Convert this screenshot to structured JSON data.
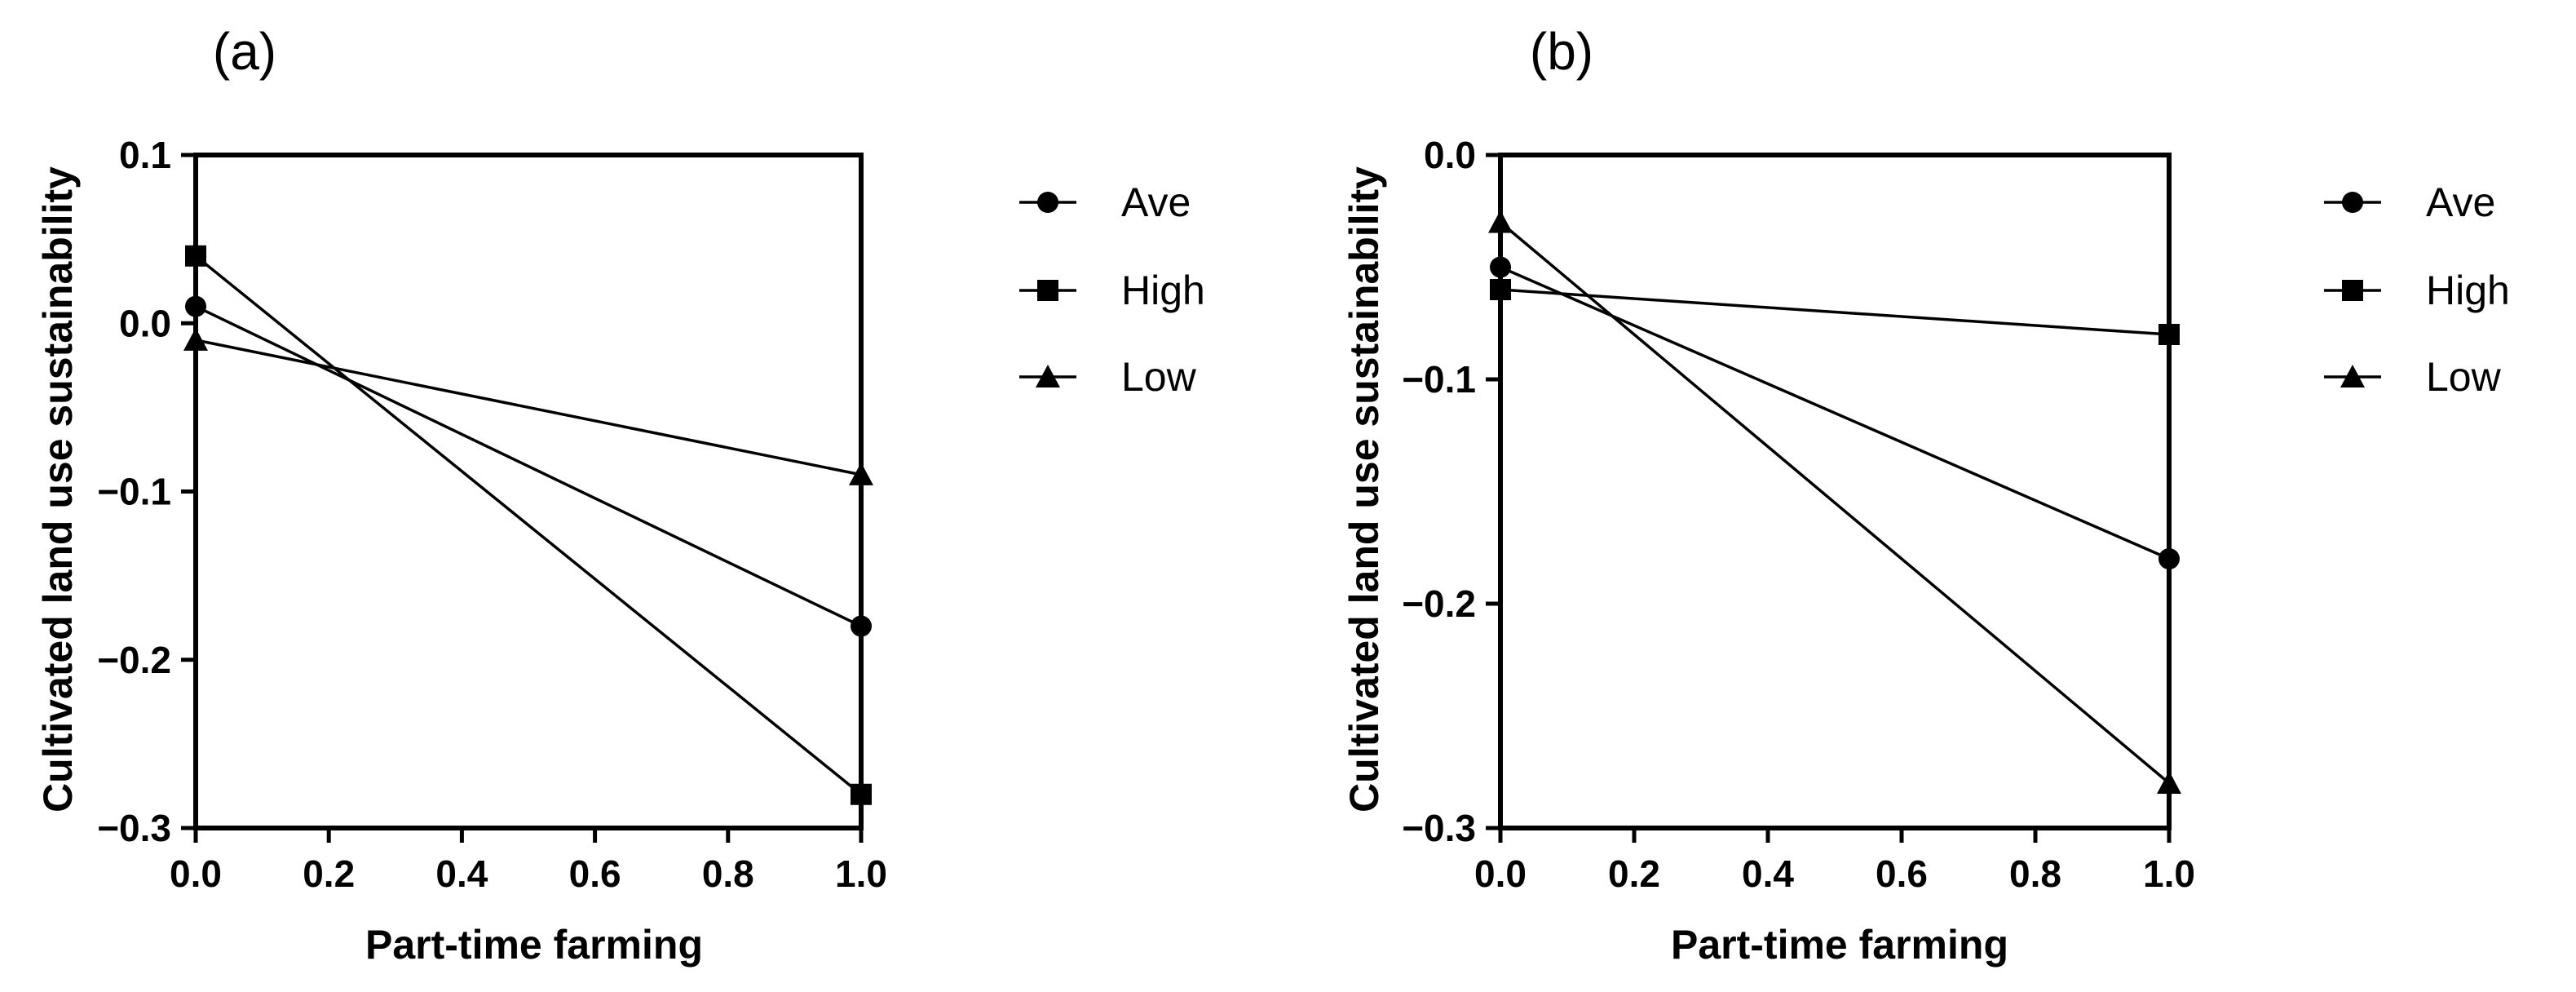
{
  "chart_data": [
    {
      "type": "line",
      "panel_label": "(a)",
      "xlabel": "Part-time farming",
      "ylabel": "Cultivated land use sustainability",
      "xlim": [
        0.0,
        1.0
      ],
      "ylim": [
        -0.3,
        0.1
      ],
      "xticks": [
        0.0,
        0.2,
        0.4,
        0.6,
        0.8,
        1.0
      ],
      "xtick_labels": [
        "0.0",
        "0.2",
        "0.4",
        "0.6",
        "0.8",
        "1.0"
      ],
      "yticks": [
        0.1,
        0.0,
        -0.1,
        -0.2,
        -0.3
      ],
      "ytick_labels": [
        "0.1",
        "0.0",
        "−0.1",
        "−0.2",
        "−0.3"
      ],
      "grid": false,
      "legend_position": "right",
      "series": [
        {
          "name": "Ave",
          "marker": "circle",
          "x": [
            0.0,
            1.0
          ],
          "values": [
            0.01,
            -0.18
          ]
        },
        {
          "name": "High",
          "marker": "square",
          "x": [
            0.0,
            1.0
          ],
          "values": [
            0.04,
            -0.28
          ]
        },
        {
          "name": "Low",
          "marker": "triangle",
          "x": [
            0.0,
            1.0
          ],
          "values": [
            -0.01,
            -0.09
          ]
        }
      ]
    },
    {
      "type": "line",
      "panel_label": "(b)",
      "xlabel": "Part-time farming",
      "ylabel": "Cultivated land use sustainability",
      "xlim": [
        0.0,
        1.0
      ],
      "ylim": [
        -0.3,
        0.0
      ],
      "xticks": [
        0.0,
        0.2,
        0.4,
        0.6,
        0.8,
        1.0
      ],
      "xtick_labels": [
        "0.0",
        "0.2",
        "0.4",
        "0.6",
        "0.8",
        "1.0"
      ],
      "yticks": [
        0.0,
        -0.1,
        -0.2,
        -0.3
      ],
      "ytick_labels": [
        "0.0",
        "−0.1",
        "−0.2",
        "−0.3"
      ],
      "grid": false,
      "legend_position": "right",
      "series": [
        {
          "name": "Ave",
          "marker": "circle",
          "x": [
            0.0,
            1.0
          ],
          "values": [
            -0.05,
            -0.18
          ]
        },
        {
          "name": "High",
          "marker": "square",
          "x": [
            0.0,
            1.0
          ],
          "values": [
            -0.06,
            -0.08
          ]
        },
        {
          "name": "Low",
          "marker": "triangle",
          "x": [
            0.0,
            1.0
          ],
          "values": [
            -0.03,
            -0.28
          ]
        }
      ]
    }
  ]
}
